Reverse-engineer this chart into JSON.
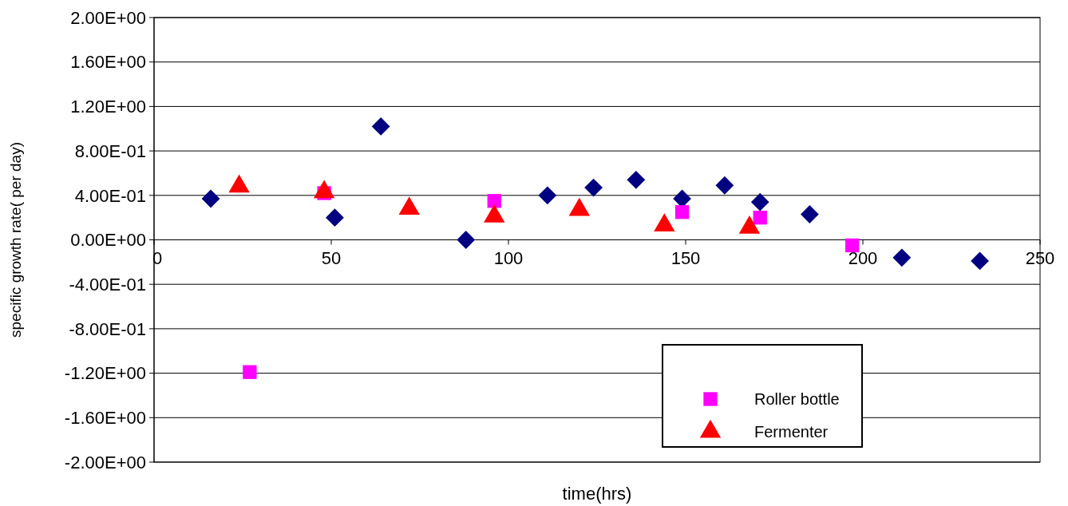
{
  "chart_data": {
    "type": "scatter",
    "xlabel": "time(hrs)",
    "ylabel": "specific growth rate( per day)",
    "xlim": [
      0,
      250
    ],
    "xticks": [
      0,
      50,
      100,
      150,
      200,
      250
    ],
    "ylim": [
      -2,
      2
    ],
    "yticks": [
      {
        "value": -2,
        "label": "-2.00E+00"
      },
      {
        "value": -1.6,
        "label": "-1.60E+00"
      },
      {
        "value": -1.2,
        "label": "-1.20E+00"
      },
      {
        "value": -0.8,
        "label": "-8.00E-01"
      },
      {
        "value": -0.4,
        "label": "-4.00E-01"
      },
      {
        "value": 0,
        "label": "0.00E+00"
      },
      {
        "value": 0.4,
        "label": "4.00E-01"
      },
      {
        "value": 0.8,
        "label": "8.00E-01"
      },
      {
        "value": 1.2,
        "label": "1.20E+00"
      },
      {
        "value": 1.6,
        "label": "1.60E+00"
      },
      {
        "value": 2,
        "label": "2.00E+00"
      }
    ],
    "grid": "y",
    "legend": "bottom right",
    "series": [
      {
        "color": "#000080",
        "marker": "diamond",
        "x": [
          16,
          51,
          64,
          88,
          111,
          124,
          136,
          149,
          161,
          171,
          185,
          211,
          233
        ],
        "values": [
          0.37,
          0.2,
          1.02,
          0,
          0.4,
          0.47,
          0.54,
          0.37,
          0.49,
          0.34,
          0.23,
          -0.16,
          -0.19
        ]
      },
      {
        "name": "Roller bottle",
        "color": "#ff00ff",
        "marker": "square",
        "x": [
          27,
          48,
          96,
          149,
          171,
          197
        ],
        "values": [
          -1.19,
          0.42,
          0.35,
          0.25,
          0.2,
          -0.05
        ]
      },
      {
        "name": "Fermenter",
        "color": "#ff0000",
        "marker": "triangle",
        "x": [
          24,
          48,
          72,
          96,
          120,
          144,
          168
        ],
        "values": [
          0.48,
          0.43,
          0.28,
          0.21,
          0.27,
          0.13,
          0.11
        ]
      }
    ]
  }
}
